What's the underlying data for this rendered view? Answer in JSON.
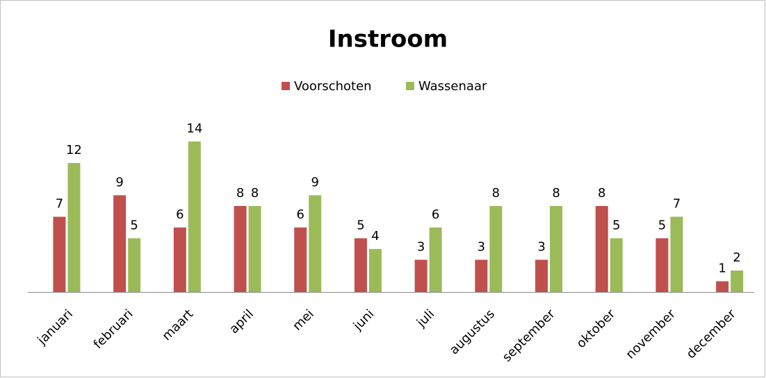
{
  "chart_data": {
    "type": "bar",
    "title": "Instroom",
    "categories": [
      "januari",
      "februari",
      "maart",
      "april",
      "mei",
      "juni",
      "juli",
      "augustus",
      "september",
      "oktober",
      "november",
      "december"
    ],
    "series": [
      {
        "name": "Voorschoten",
        "color": "#c0504d",
        "values": [
          7,
          9,
          6,
          8,
          6,
          5,
          3,
          3,
          3,
          8,
          5,
          1
        ]
      },
      {
        "name": "Wassenaar",
        "color": "#9bbb59",
        "values": [
          12,
          5,
          14,
          8,
          9,
          4,
          6,
          8,
          8,
          5,
          7,
          2
        ]
      }
    ],
    "legend": "top"
  }
}
